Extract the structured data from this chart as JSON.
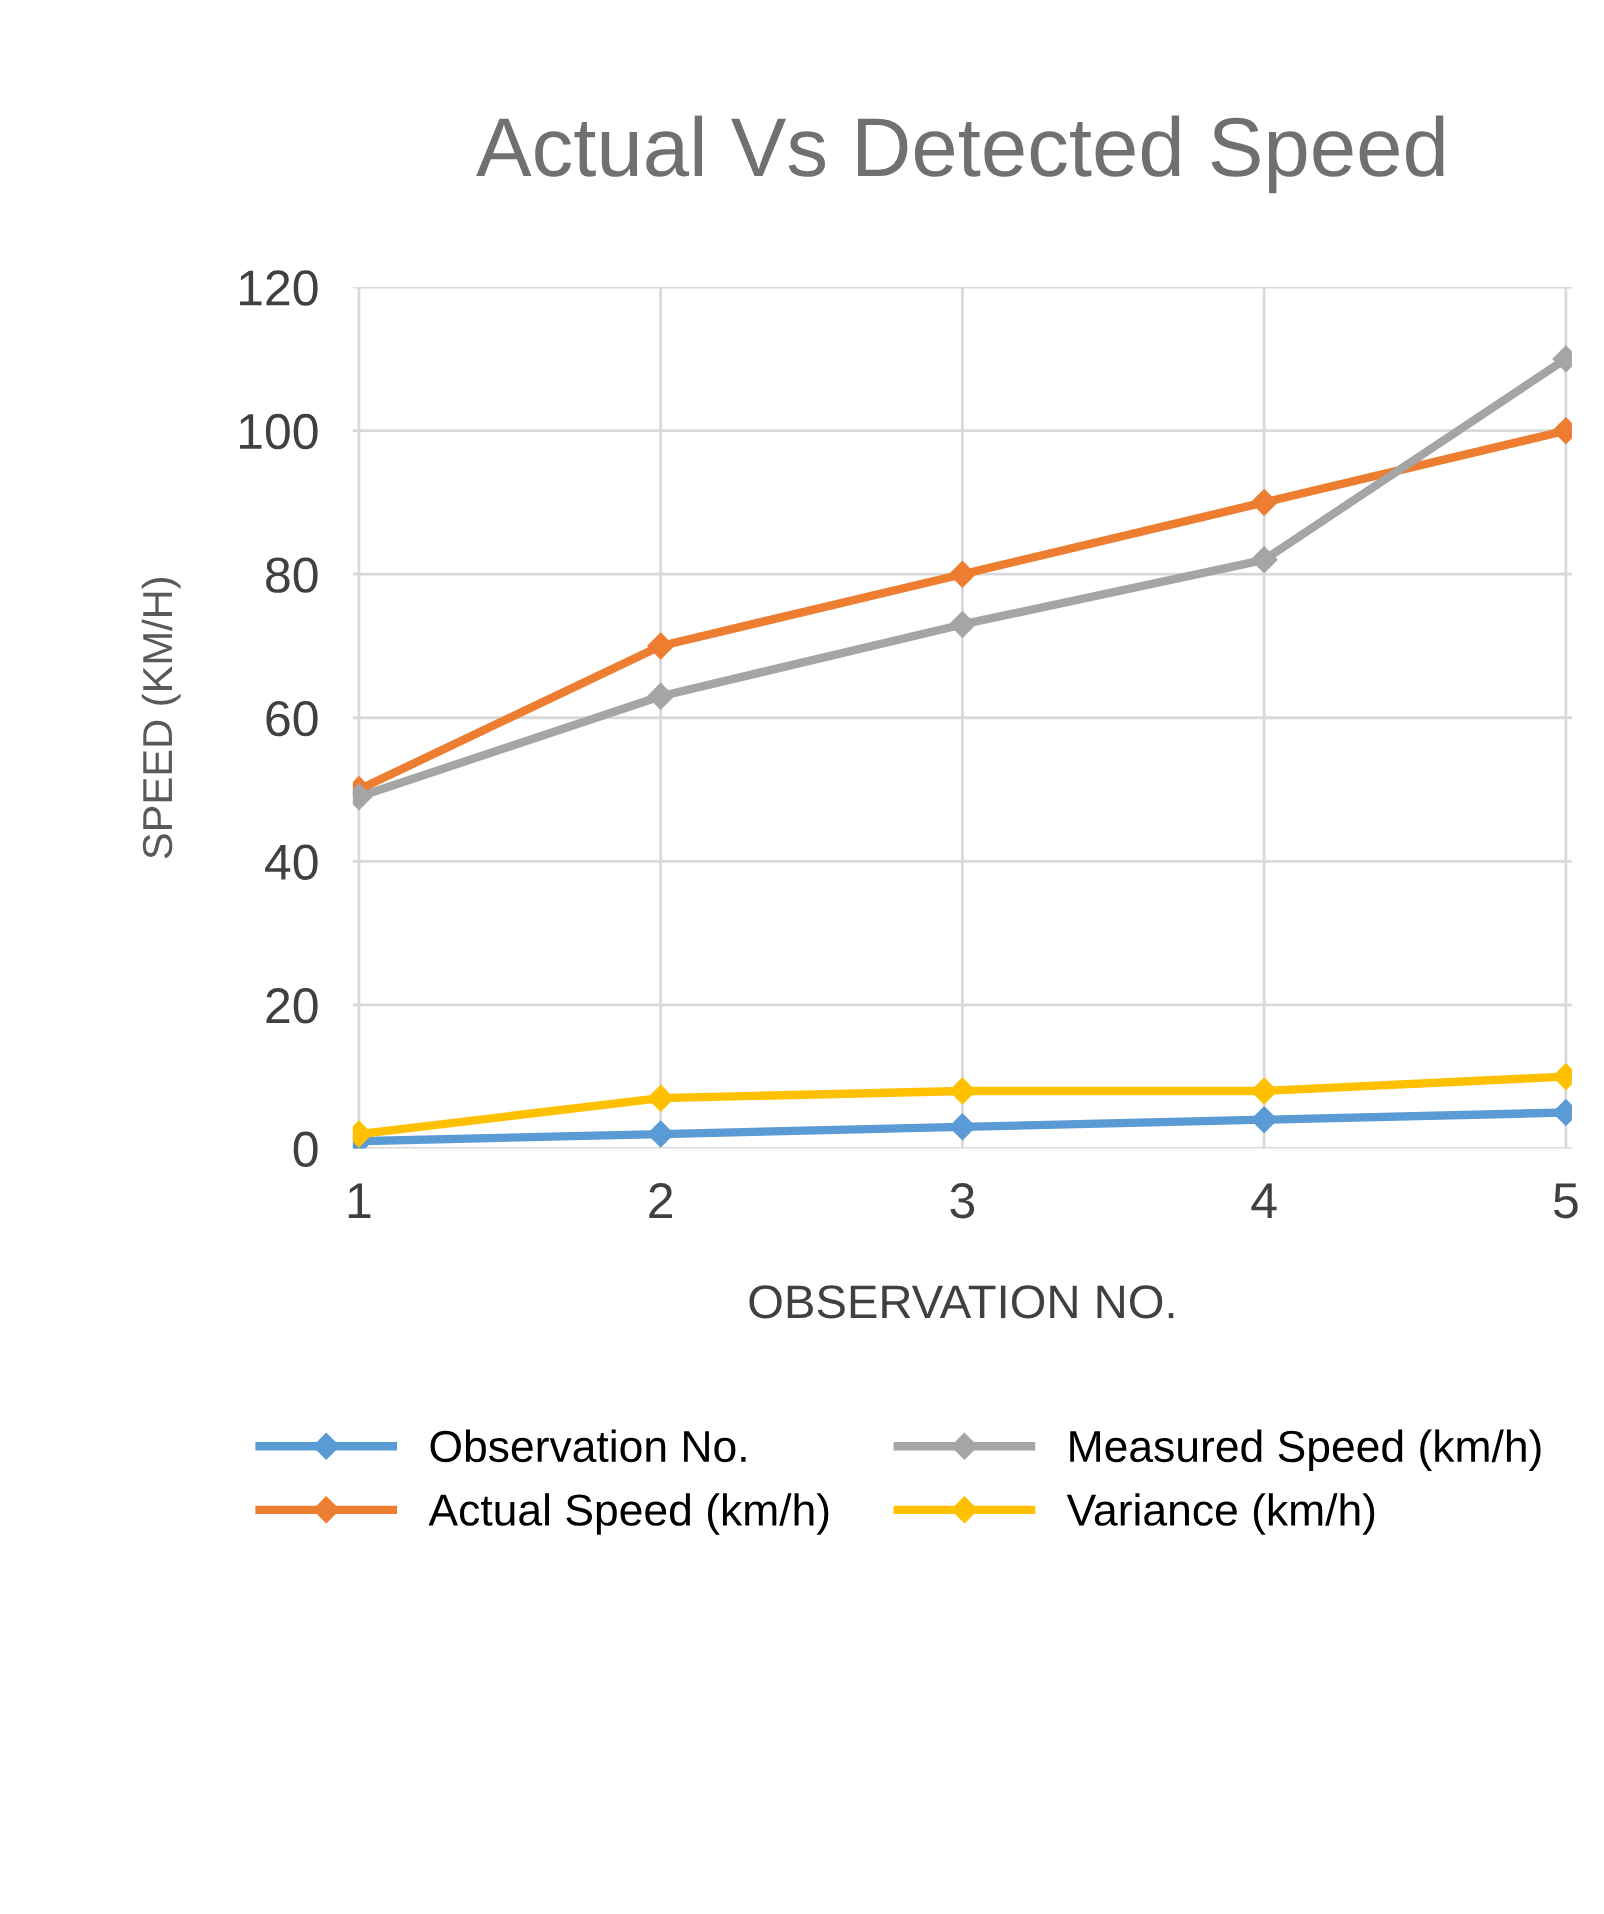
{
  "chart_data": {
    "type": "line",
    "title": "Actual Vs Detected Speed",
    "xlabel": "OBSERVATION NO.",
    "ylabel": "SPEED (KM/H)",
    "categories": [
      "1",
      "2",
      "3",
      "4",
      "5"
    ],
    "series": [
      {
        "name": "Observation No.",
        "color": "#5b9bd5",
        "values": [
          1,
          2,
          3,
          4,
          5
        ]
      },
      {
        "name": "Actual Speed (km/h)",
        "color": "#ed7d31",
        "values": [
          50,
          70,
          80,
          90,
          100
        ]
      },
      {
        "name": "Measured Speed (km/h)",
        "color": "#a5a5a5",
        "values": [
          49,
          63,
          73,
          82,
          110
        ]
      },
      {
        "name": "Variance (km/h)",
        "color": "#ffc000",
        "values": [
          2,
          7,
          8,
          8,
          10
        ]
      }
    ],
    "ylim": [
      0,
      120
    ],
    "yticks": [
      0,
      20,
      40,
      60,
      80,
      100,
      120
    ],
    "grid": true,
    "legend": "bottom",
    "marker": "diamond",
    "line_style": "solid"
  }
}
